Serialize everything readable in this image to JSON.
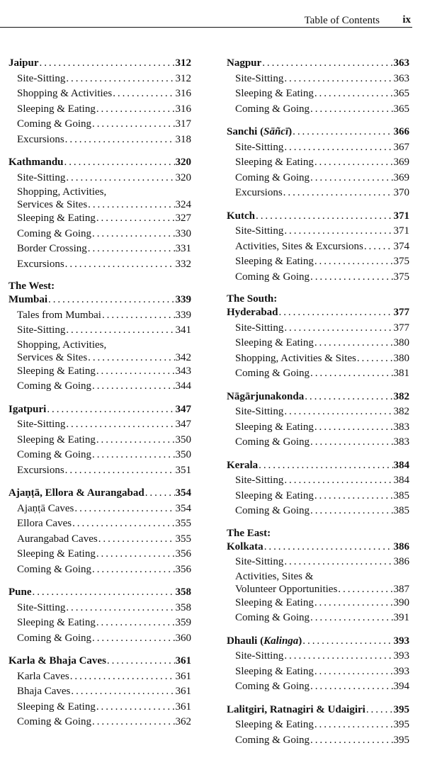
{
  "header": {
    "title": "Table of Contents",
    "page": "ix"
  },
  "columns": [
    {
      "groups": [
        {
          "title": "Jaipur",
          "page": "312",
          "entries": [
            {
              "lines": [
                "Site-Sitting"
              ],
              "page": "312"
            },
            {
              "lines": [
                "Shopping & Activities"
              ],
              "page": "316"
            },
            {
              "lines": [
                "Sleeping & Eating"
              ],
              "page": "316"
            },
            {
              "lines": [
                "Coming & Going"
              ],
              "page": "317"
            },
            {
              "lines": [
                "Excursions"
              ],
              "page": "318"
            }
          ]
        },
        {
          "title": "Kathmandu",
          "page": "320",
          "entries": [
            {
              "lines": [
                "Site-Sitting"
              ],
              "page": "320"
            },
            {
              "lines": [
                "Shopping, Activities,",
                "Services & Sites"
              ],
              "page": "324"
            },
            {
              "lines": [
                "Sleeping & Eating"
              ],
              "page": "327"
            },
            {
              "lines": [
                "Coming & Going"
              ],
              "page": "330"
            },
            {
              "lines": [
                "Border Crossing"
              ],
              "page": "331"
            },
            {
              "lines": [
                "Excursions"
              ],
              "page": "332"
            }
          ]
        },
        {
          "section": "The West:",
          "title": "Mumbai",
          "page": "339",
          "entries": [
            {
              "lines": [
                "Tales from Mumbai"
              ],
              "page": "339"
            },
            {
              "lines": [
                "Site-Sitting"
              ],
              "page": "341"
            },
            {
              "lines": [
                "Shopping, Activities,",
                "Services & Sites"
              ],
              "page": "342"
            },
            {
              "lines": [
                "Sleeping & Eating"
              ],
              "page": "343"
            },
            {
              "lines": [
                "Coming & Going"
              ],
              "page": "344"
            }
          ]
        },
        {
          "title": "Igatpuri",
          "page": "347",
          "entries": [
            {
              "lines": [
                "Site-Sitting"
              ],
              "page": "347"
            },
            {
              "lines": [
                "Sleeping & Eating"
              ],
              "page": "350"
            },
            {
              "lines": [
                "Coming & Going"
              ],
              "page": "350"
            },
            {
              "lines": [
                "Excursions"
              ],
              "page": "351"
            }
          ]
        },
        {
          "title": "Ajaṇṭā, Ellora & Aurangabad",
          "page": "354",
          "entries": [
            {
              "lines": [
                "Ajaṇṭā Caves"
              ],
              "page": "354"
            },
            {
              "lines": [
                "Ellora Caves"
              ],
              "page": "355"
            },
            {
              "lines": [
                "Aurangabad Caves"
              ],
              "page": "355"
            },
            {
              "lines": [
                "Sleeping & Eating"
              ],
              "page": "356"
            },
            {
              "lines": [
                "Coming & Going"
              ],
              "page": "356"
            }
          ]
        },
        {
          "title": "Pune",
          "page": "358",
          "entries": [
            {
              "lines": [
                "Site-Sitting"
              ],
              "page": "358"
            },
            {
              "lines": [
                "Sleeping & Eating"
              ],
              "page": "359"
            },
            {
              "lines": [
                "Coming & Going"
              ],
              "page": "360"
            }
          ]
        },
        {
          "title": "Karla & Bhaja Caves",
          "page": "361",
          "entries": [
            {
              "lines": [
                "Karla Caves"
              ],
              "page": "361"
            },
            {
              "lines": [
                "Bhaja Caves"
              ],
              "page": "361"
            },
            {
              "lines": [
                "Sleeping & Eating"
              ],
              "page": "361"
            },
            {
              "lines": [
                "Coming & Going"
              ],
              "page": "362"
            }
          ]
        }
      ]
    },
    {
      "groups": [
        {
          "title": "Nagpur",
          "page": "363",
          "entries": [
            {
              "lines": [
                "Site-Sitting"
              ],
              "page": "363"
            },
            {
              "lines": [
                "Sleeping & Eating"
              ],
              "page": "365"
            },
            {
              "lines": [
                "Coming & Going"
              ],
              "page": "365"
            }
          ]
        },
        {
          "title": "Sanchi (",
          "title_italic": "Sāñcī",
          "title_suffix": ")",
          "page": "366",
          "entries": [
            {
              "lines": [
                "Site-Sitting"
              ],
              "page": "367"
            },
            {
              "lines": [
                "Sleeping & Eating"
              ],
              "page": "369"
            },
            {
              "lines": [
                "Coming & Going"
              ],
              "page": "369"
            },
            {
              "lines": [
                "Excursions"
              ],
              "page": "370"
            }
          ]
        },
        {
          "title": "Kutch",
          "page": "371",
          "entries": [
            {
              "lines": [
                "Site-Sitting"
              ],
              "page": "371"
            },
            {
              "lines": [
                "Activities, Sites & Excursions"
              ],
              "page": "374"
            },
            {
              "lines": [
                "Sleeping & Eating"
              ],
              "page": "375"
            },
            {
              "lines": [
                "Coming & Going"
              ],
              "page": "375"
            }
          ]
        },
        {
          "section": "The South:",
          "title": "Hyderabad",
          "page": "377",
          "entries": [
            {
              "lines": [
                "Site-Sitting"
              ],
              "page": "377"
            },
            {
              "lines": [
                "Sleeping & Eating"
              ],
              "page": "380"
            },
            {
              "lines": [
                "Shopping, Activities & Sites"
              ],
              "page": "380"
            },
            {
              "lines": [
                "Coming & Going"
              ],
              "page": "381"
            }
          ]
        },
        {
          "title": "Nāgārjunakonda",
          "page": "382",
          "entries": [
            {
              "lines": [
                "Site-Sitting"
              ],
              "page": "382"
            },
            {
              "lines": [
                "Sleeping & Eating"
              ],
              "page": "383"
            },
            {
              "lines": [
                "Coming & Going"
              ],
              "page": "383"
            }
          ]
        },
        {
          "title": "Kerala",
          "page": "384",
          "entries": [
            {
              "lines": [
                "Site-Sitting"
              ],
              "page": "384"
            },
            {
              "lines": [
                "Sleeping & Eating"
              ],
              "page": "385"
            },
            {
              "lines": [
                "Coming & Going"
              ],
              "page": "385"
            }
          ]
        },
        {
          "section": "The East:",
          "title": "Kolkata",
          "page": "386",
          "entries": [
            {
              "lines": [
                "Site-Sitting"
              ],
              "page": "386"
            },
            {
              "lines": [
                "Activities, Sites &",
                "Volunteer Opportunities"
              ],
              "page": "387"
            },
            {
              "lines": [
                "Sleeping & Eating"
              ],
              "page": "390"
            },
            {
              "lines": [
                "Coming & Going"
              ],
              "page": "391"
            }
          ]
        },
        {
          "title": "Dhauli (",
          "title_italic": "Kalinga",
          "title_suffix": ")",
          "page": "393",
          "entries": [
            {
              "lines": [
                "Site-Sitting"
              ],
              "page": "393"
            },
            {
              "lines": [
                "Sleeping & Eating"
              ],
              "page": "393"
            },
            {
              "lines": [
                "Coming & Going"
              ],
              "page": "394"
            }
          ]
        },
        {
          "title": "Lalitgiri, Ratnagiri & Udaigiri",
          "page": "395",
          "entries": [
            {
              "lines": [
                "Sleeping & Eating"
              ],
              "page": "395"
            },
            {
              "lines": [
                "Coming & Going"
              ],
              "page": "395"
            }
          ]
        }
      ]
    }
  ]
}
